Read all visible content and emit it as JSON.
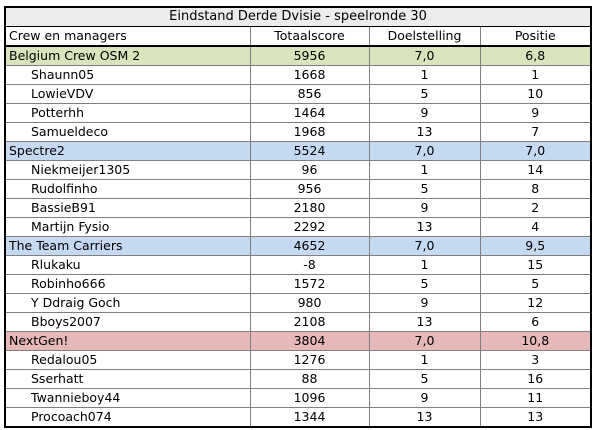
{
  "title": "Eindstand Derde Dvisie - speelronde 30",
  "columns": [
    "Crew en managers",
    "Totaalscore",
    "Doelstelling",
    "Positie"
  ],
  "crews": [
    {
      "name": "Belgium Crew OSM 2",
      "total": "5956",
      "target": "7,0",
      "position": "6,8",
      "color": "#d8e4bc",
      "managers": [
        {
          "name": "Shaunn05",
          "total": "1668",
          "target": "1",
          "position": "1"
        },
        {
          "name": "LowieVDV",
          "total": "856",
          "target": "5",
          "position": "10"
        },
        {
          "name": "Potterhh",
          "total": "1464",
          "target": "9",
          "position": "9"
        },
        {
          "name": "Samueldeco",
          "total": "1968",
          "target": "13",
          "position": "7"
        }
      ]
    },
    {
      "name": "Spectre2",
      "total": "5524",
      "target": "7,0",
      "position": "7,0",
      "color": "#c5d9f1",
      "managers": [
        {
          "name": "Niekmeijer1305",
          "total": "96",
          "target": "1",
          "position": "14"
        },
        {
          "name": "Rudolfinho",
          "total": "956",
          "target": "5",
          "position": "8"
        },
        {
          "name": "BassieB91",
          "total": "2180",
          "target": "9",
          "position": "2"
        },
        {
          "name": "Martijn Fysio",
          "total": "2292",
          "target": "13",
          "position": "4"
        }
      ]
    },
    {
      "name": "The Team Carriers",
      "total": "4652",
      "target": "7,0",
      "position": "9,5",
      "color": "#c5d9f1",
      "managers": [
        {
          "name": "Rlukaku",
          "total": "-8",
          "target": "1",
          "position": "15"
        },
        {
          "name": "Robinho666",
          "total": "1572",
          "target": "5",
          "position": "5"
        },
        {
          "name": "Y Ddraig Goch",
          "total": "980",
          "target": "9",
          "position": "12"
        },
        {
          "name": "Bboys2007",
          "total": "2108",
          "target": "13",
          "position": "6"
        }
      ]
    },
    {
      "name": "NextGen!",
      "total": "3804",
      "target": "7,0",
      "position": "10,8",
      "color": "#e6b8b7",
      "managers": [
        {
          "name": "Redalou05",
          "total": "1276",
          "target": "1",
          "position": "3"
        },
        {
          "name": "Sserhatt",
          "total": "88",
          "target": "5",
          "position": "16"
        },
        {
          "name": "Twannieboy44",
          "total": "1096",
          "target": "9",
          "position": "11"
        },
        {
          "name": "Procoach074",
          "total": "1344",
          "target": "13",
          "position": "13"
        }
      ]
    }
  ]
}
